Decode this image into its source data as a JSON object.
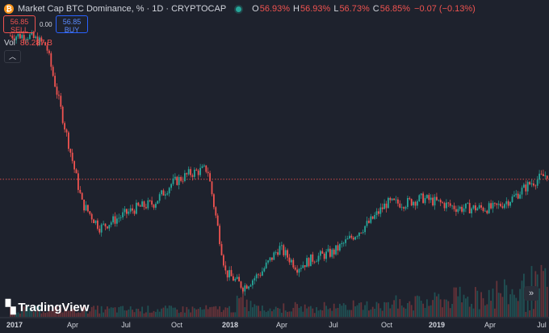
{
  "header": {
    "icon": "bitcoin-icon",
    "title": "Market Cap BTC Dominance, % · 1D · CRYPTOCAP",
    "ohlc": {
      "open": "56.93%",
      "high": "56.93%",
      "low": "56.73%",
      "close": "56.85%",
      "change": "−0.07 (−0.13%)"
    }
  },
  "trade": {
    "sell_price": "56.85",
    "sell_label": "SELL",
    "spread": "0.00",
    "buy_price": "56.85",
    "buy_label": "BUY"
  },
  "volume": {
    "label": "Vol",
    "value": "86.287 B"
  },
  "collapse_icon": "chevron-up-icon",
  "logo": {
    "text": "TradingView"
  },
  "scroll_icon": "double-chevron-right-icon",
  "x_axis": [
    "2017",
    "Apr",
    "Jul",
    "Oct",
    "2018",
    "Apr",
    "Jul",
    "Oct",
    "2019",
    "Apr",
    "Jul"
  ],
  "colors": {
    "background": "#1e222d",
    "up": "#26a69a",
    "down": "#ef5350",
    "price_line": "#ef5350"
  },
  "chart_data": {
    "type": "line",
    "x": [
      "2017-01",
      "2017-02",
      "2017-03",
      "2017-04",
      "2017-05",
      "2017-06",
      "2017-07",
      "2017-08",
      "2017-09",
      "2017-10",
      "2017-11",
      "2017-12",
      "2018-01",
      "2018-02",
      "2018-03",
      "2018-04",
      "2018-05",
      "2018-06",
      "2018-07",
      "2018-08",
      "2018-09",
      "2018-10",
      "2018-11",
      "2018-12",
      "2019-01",
      "2019-02",
      "2019-03",
      "2019-04",
      "2019-05",
      "2019-06",
      "2019-07"
    ],
    "series": [
      {
        "values": [
          86,
          86,
          84,
          68,
          52,
          47,
          49,
          51,
          52,
          56,
          58,
          59,
          38,
          35,
          38,
          43,
          39,
          41,
          42,
          45,
          48,
          52,
          52,
          53,
          52,
          51,
          51,
          51,
          53,
          56,
          58
        ]
      }
    ],
    "current_value": 56.85
  }
}
